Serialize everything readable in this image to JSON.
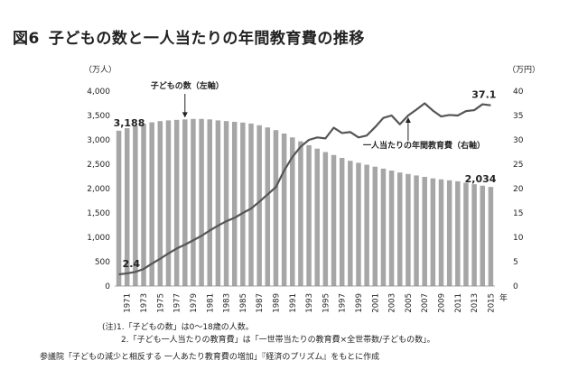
{
  "title": {
    "number": "図6",
    "text": "子どもの数と一人当たりの年間教育費の推移"
  },
  "notes": [
    "(注)1.「子どもの数」は0〜18歳の人数。",
    "2.「子ども一人当たりの教育費」は「一世帯当たりの教育費×全世帯数/子どもの数」。"
  ],
  "source": "参議院「子どもの減少と相反する 一人あたり教育費の増加」『経済のプリズム』をもとに作成",
  "chart_data": {
    "type": "bar+line",
    "x": [
      1970,
      1971,
      1972,
      1973,
      1974,
      1975,
      1976,
      1977,
      1978,
      1979,
      1980,
      1981,
      1982,
      1983,
      1984,
      1985,
      1986,
      1987,
      1988,
      1989,
      1990,
      1991,
      1992,
      1993,
      1994,
      1995,
      1996,
      1997,
      1998,
      1999,
      2000,
      2001,
      2002,
      2003,
      2004,
      2005,
      2006,
      2007,
      2008,
      2009,
      2010,
      2011,
      2012,
      2013,
      2014,
      2015
    ],
    "x_tick_labels": [
      "1971",
      "1973",
      "1975",
      "1977",
      "1979",
      "1981",
      "1983",
      "1985",
      "1987",
      "1989",
      "1991",
      "1993",
      "1995",
      "1997",
      "1999",
      "2001",
      "2003",
      "2005",
      "2007",
      "2009",
      "2011",
      "2013",
      "2015"
    ],
    "x_unit": "年",
    "series": [
      {
        "name": "子どもの数（左軸）",
        "type": "bar",
        "axis": "left",
        "color": "#a6a6a6",
        "values": [
          3188,
          3240,
          3290,
          3330,
          3360,
          3385,
          3400,
          3410,
          3420,
          3430,
          3430,
          3420,
          3400,
          3385,
          3370,
          3355,
          3335,
          3300,
          3255,
          3200,
          3130,
          3050,
          2970,
          2890,
          2820,
          2750,
          2690,
          2630,
          2570,
          2530,
          2490,
          2450,
          2410,
          2370,
          2330,
          2300,
          2270,
          2240,
          2210,
          2190,
          2170,
          2150,
          2120,
          2090,
          2060,
          2034
        ],
        "labels": [
          {
            "x": 1970,
            "text": "3,188"
          },
          {
            "x": 2015,
            "text": "2,034"
          }
        ]
      },
      {
        "name": "一人当たりの年間教育費（右軸）",
        "type": "line",
        "axis": "right",
        "color": "#555555",
        "values": [
          2.4,
          2.6,
          2.9,
          3.5,
          4.6,
          5.6,
          6.7,
          7.7,
          8.5,
          9.4,
          10.3,
          11.4,
          12.4,
          13.3,
          14.0,
          15.0,
          15.9,
          17.3,
          18.8,
          20.3,
          23.7,
          26.5,
          28.6,
          30.0,
          30.5,
          30.3,
          32.5,
          31.4,
          31.6,
          30.5,
          30.9,
          32.6,
          34.5,
          35.0,
          33.2,
          35.0,
          36.2,
          37.5,
          36.0,
          34.8,
          35.1,
          35.0,
          35.9,
          36.1,
          37.3,
          37.1
        ],
        "labels": [
          {
            "x": 1970,
            "text": "2.4"
          },
          {
            "x": 2015,
            "text": "37.1"
          }
        ]
      }
    ],
    "y_left": {
      "unit": "（万人）",
      "min": 0,
      "max": 4000,
      "ticks": [
        "0",
        "500",
        "1,000",
        "1,500",
        "2,000",
        "2,500",
        "3,000",
        "3,500",
        "4,000"
      ]
    },
    "y_right": {
      "unit": "（万円）",
      "min": 0,
      "max": 40,
      "ticks": [
        "0",
        "5",
        "10",
        "15",
        "20",
        "25",
        "30",
        "35",
        "40"
      ]
    },
    "annotations": [
      {
        "text": "子どもの数（左軸）",
        "points_to_series": 0,
        "at_x": 1978
      },
      {
        "text": "一人当たりの年間教育費（右軸）",
        "points_to_series": 1,
        "at_x": 2005
      }
    ],
    "grid": false,
    "legend": "none"
  }
}
